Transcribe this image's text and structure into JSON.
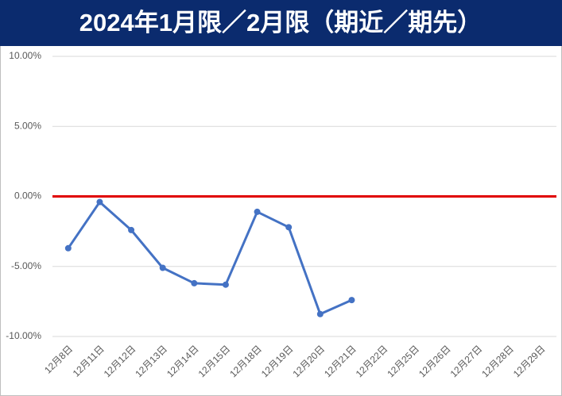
{
  "chart_data": {
    "type": "line",
    "title": "2024年1月限／2月限（期近／期先）",
    "categories": [
      "12月8日",
      "12月11日",
      "12月12日",
      "12月13日",
      "12月14日",
      "12月15日",
      "12月18日",
      "12月19日",
      "12月20日",
      "12月21日",
      "12月22日",
      "12月25日",
      "12月26日",
      "12月27日",
      "12月28日",
      "12月29日"
    ],
    "series": [
      {
        "color": "#4472c4",
        "values": [
          -3.7,
          -0.4,
          -2.4,
          -5.1,
          -6.2,
          -6.3,
          -1.1,
          -2.2,
          -8.4,
          -7.4,
          null,
          null,
          null,
          null,
          null,
          null
        ]
      }
    ],
    "ylim": [
      -10,
      10
    ],
    "yticks": [
      {
        "value": -10,
        "label": "-10.00%"
      },
      {
        "value": -5,
        "label": "-5.00%"
      },
      {
        "value": 0,
        "label": "0.00%"
      },
      {
        "value": 5,
        "label": "5.00%"
      },
      {
        "value": 10,
        "label": "10.00%"
      }
    ],
    "grid": true,
    "zero_line_color": "#e00000"
  }
}
